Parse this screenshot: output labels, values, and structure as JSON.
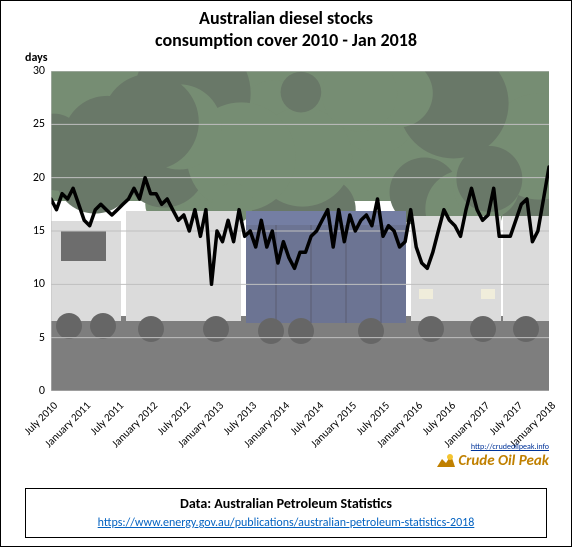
{
  "chart": {
    "type": "line",
    "title_line1": "Australian diesel stocks",
    "title_line2": "consumption cover 2010 - Jan 2018",
    "title_fontsize": 18,
    "y_axis_title": "days",
    "ylim": [
      0,
      30
    ],
    "yticks": [
      0,
      5,
      10,
      15,
      20,
      25,
      30
    ],
    "xlabels": [
      "July 2010",
      "January 2011",
      "July 2011",
      "January 2012",
      "July 2012",
      "January 2013",
      "July 2013",
      "January 2014",
      "July 2014",
      "January 2015",
      "July 2015",
      "January 2016",
      "July 2016",
      "January 2017",
      "July 2017",
      "January 2018"
    ],
    "values": [
      18,
      17,
      18.5,
      18,
      19,
      17.5,
      16,
      15.5,
      17,
      17.5,
      17,
      16.5,
      17,
      17.5,
      18,
      19,
      18,
      20,
      18.5,
      18.5,
      17.5,
      18,
      17,
      16,
      16.5,
      15,
      17,
      14.5,
      17,
      10,
      15,
      14,
      16,
      14,
      17,
      14.5,
      15,
      13.5,
      16,
      13.5,
      15,
      12,
      14,
      12.5,
      11.5,
      13,
      13,
      14.5,
      15,
      16,
      17,
      13.5,
      17,
      14,
      16.5,
      15,
      16,
      16.5,
      15.5,
      18,
      14.5,
      15.5,
      15,
      13.5,
      14,
      17,
      13.5,
      12,
      11.5,
      13,
      15,
      17,
      16,
      15.5,
      14.5,
      17,
      19,
      17,
      16,
      16.5,
      19,
      14.5,
      14.5,
      14.5,
      16,
      17.5,
      18,
      14,
      15,
      18,
      21
    ],
    "line_color": "#000000",
    "line_width": 3.5,
    "gridline_color": "#bfbfbf",
    "gridline_width": 1,
    "axis_color": "#bfbfbf",
    "background_overlay": "#ffffff",
    "background_overlay_opacity": 0.35,
    "photo_colors": {
      "sky": "#6b8a6f",
      "foliage_dark": "#1a3018",
      "foliage_mid": "#2d5028",
      "road": "#3a3a3a",
      "truck_white": "#c8c8c8",
      "truck_blue": "#1e2a5a",
      "truck_blue_light": "#2a3a72",
      "headlight": "#e8e4c8"
    }
  },
  "data_source": {
    "label": "Data: Australian Petroleum Statistics",
    "url": "https://www.energy.gov.au/publications/australian-petroleum-statistics-2018"
  },
  "logo": {
    "url_text": "http://crudeoilpeak.info",
    "main": "Crude Oil Peak"
  }
}
